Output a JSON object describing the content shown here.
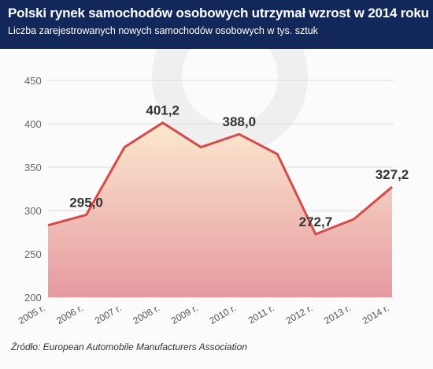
{
  "header": {
    "title": "Polski rynek samochodów osobowych utrzymał wzrost w 2014 roku",
    "subtitle": "Liczba zarejestrowanych nowych samochodów osobowych w tys. sztuk"
  },
  "source": "Źródło: European Automobile Manufacturers Association",
  "colors": {
    "header_bg": "#12275a",
    "line": "#d84a4a",
    "fill_top": "#fbe9cf",
    "fill_bottom": "#e69aa0",
    "grid": "#dddddd"
  },
  "chart_data": {
    "type": "area",
    "x": [
      "2005 r.",
      "2006 r.",
      "2007 r.",
      "2008 r.",
      "2009 r.",
      "2010 r.",
      "2011 r.",
      "2012 r.",
      "2013 r.",
      "2014 r."
    ],
    "series": [
      {
        "values": [
          283,
          295.0,
          373,
          401.2,
          373,
          388.0,
          365,
          272.7,
          290,
          327.2
        ]
      }
    ],
    "data_labels": [
      {
        "index": 1,
        "text": "295,0"
      },
      {
        "index": 3,
        "text": "401,2"
      },
      {
        "index": 5,
        "text": "388,0"
      },
      {
        "index": 7,
        "text": "272,7"
      },
      {
        "index": 9,
        "text": "327,2"
      }
    ],
    "ylim": [
      200,
      450
    ],
    "yticks": [
      "200",
      "250",
      "300",
      "350",
      "400",
      "450"
    ],
    "grid": true,
    "legend": "none"
  }
}
